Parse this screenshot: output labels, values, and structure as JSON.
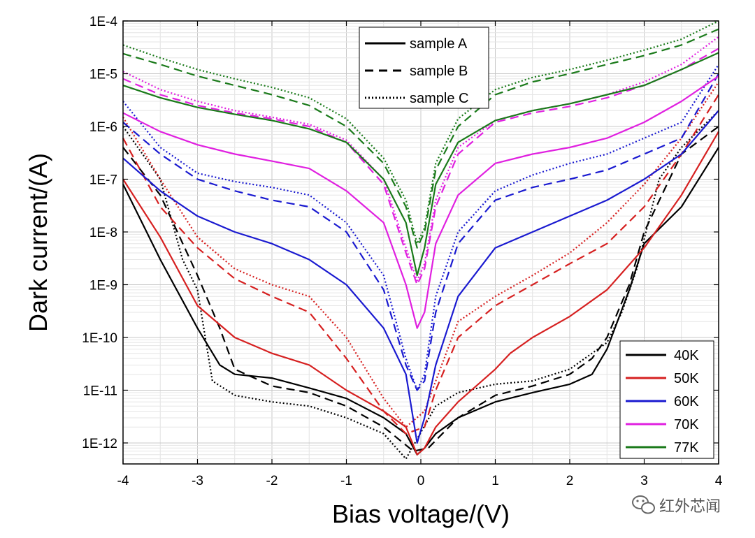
{
  "chart_data": {
    "type": "line",
    "title": "",
    "xlabel": "Bias voltage/(V)",
    "ylabel": "Dark current/(A)",
    "xlim": [
      -4,
      4
    ],
    "ylim": [
      4e-13,
      0.0001
    ],
    "yscale": "log",
    "grid": true,
    "x_ticks": [
      "-4",
      "-3",
      "-2",
      "-1",
      "0",
      "1",
      "2",
      "3",
      "4"
    ],
    "y_ticks": [
      "1E-12",
      "1E-11",
      "1E-10",
      "1E-9",
      "1E-8",
      "1E-7",
      "1E-6",
      "1E-5",
      "1E-4"
    ],
    "style_legend": {
      "position": "top-center",
      "entries": [
        {
          "label": "sample A",
          "dash": "solid"
        },
        {
          "label": "sample B",
          "dash": "dashed"
        },
        {
          "label": "sample C",
          "dash": "dotted"
        }
      ]
    },
    "temperature_legend": {
      "position": "bottom-right",
      "entries": [
        {
          "label": "40K",
          "color": "#000000"
        },
        {
          "label": "50K",
          "color": "#d62020"
        },
        {
          "label": "60K",
          "color": "#1a1ad0"
        },
        {
          "label": "70K",
          "color": "#e020e0"
        },
        {
          "label": "77K",
          "color": "#1a7a1a"
        }
      ]
    },
    "series": [
      {
        "name": "sample A 40K",
        "sample": "A",
        "temp": "40K",
        "color": "#000000",
        "dash": "solid",
        "x": [
          -4,
          -3.5,
          -3,
          -2.7,
          -2.5,
          -2,
          -1.5,
          -1,
          -0.5,
          -0.2,
          -0.05,
          0.05,
          0.2,
          0.5,
          1,
          1.5,
          2,
          2.3,
          2.5,
          2.8,
          3,
          3.5,
          4
        ],
        "y": [
          8e-08,
          3e-09,
          1.5e-10,
          3e-11,
          2e-11,
          1.7e-11,
          1.1e-11,
          7e-12,
          3e-12,
          1.5e-12,
          6e-13,
          8e-13,
          1.5e-12,
          3e-12,
          6e-12,
          9e-12,
          1.3e-11,
          2e-11,
          6e-11,
          8e-10,
          6e-09,
          3e-08,
          4e-07
        ]
      },
      {
        "name": "sample B 40K",
        "sample": "B",
        "temp": "40K",
        "color": "#000000",
        "dash": "dashed",
        "x": [
          -4,
          -3.5,
          -3,
          -2.7,
          -2.5,
          -2,
          -1.5,
          -1,
          -0.5,
          -0.1,
          0.1,
          0.5,
          1,
          1.5,
          2,
          2.3,
          2.5,
          2.8,
          3,
          3.5,
          4
        ],
        "y": [
          4e-07,
          5e-08,
          1.5e-09,
          1.5e-10,
          2.5e-11,
          1.2e-11,
          9e-12,
          5e-12,
          2e-12,
          7e-13,
          8e-13,
          3e-12,
          8e-12,
          1.2e-11,
          2e-11,
          4e-11,
          1e-10,
          1e-09,
          1e-08,
          3e-07,
          1e-06
        ]
      },
      {
        "name": "sample C 40K",
        "sample": "C",
        "temp": "40K",
        "color": "#000000",
        "dash": "dotted",
        "x": [
          -4,
          -3.5,
          -3.2,
          -3,
          -2.8,
          -2.5,
          -2,
          -1.5,
          -1,
          -0.5,
          -0.2,
          0.2,
          0.5,
          1,
          1.5,
          2,
          2.5,
          2.7,
          2.9,
          3.2,
          3.5,
          4
        ],
        "y": [
          1e-06,
          1e-07,
          3e-09,
          8e-10,
          1.5e-11,
          8e-12,
          6e-12,
          5e-12,
          3e-12,
          1.5e-12,
          5e-13,
          5e-12,
          9e-12,
          1.3e-11,
          1.5e-11,
          2.5e-11,
          8e-11,
          3e-10,
          2e-09,
          1e-07,
          4e-07,
          2e-06
        ]
      },
      {
        "name": "sample A 50K",
        "sample": "A",
        "temp": "50K",
        "color": "#d62020",
        "dash": "solid",
        "x": [
          -4,
          -3.5,
          -3,
          -2.5,
          -2,
          -1.5,
          -1,
          -0.5,
          -0.2,
          -0.05,
          0.05,
          0.2,
          0.5,
          1,
          1.2,
          1.5,
          2,
          2.5,
          3,
          3.5,
          4
        ],
        "y": [
          1e-07,
          8e-09,
          4e-10,
          1e-10,
          5e-11,
          3e-11,
          1e-11,
          4e-12,
          2e-12,
          6e-13,
          8e-13,
          2e-12,
          6e-12,
          2.5e-11,
          5e-11,
          1e-10,
          2.5e-10,
          8e-10,
          5e-09,
          5e-08,
          8e-07
        ]
      },
      {
        "name": "sample B 50K",
        "sample": "B",
        "temp": "50K",
        "color": "#d62020",
        "dash": "dashed",
        "x": [
          -4,
          -3.5,
          -3,
          -2.5,
          -2,
          -1.5,
          -1,
          -0.5,
          -0.2,
          0.05,
          0.2,
          0.5,
          1,
          1.5,
          2,
          2.5,
          3,
          3.5,
          4
        ],
        "y": [
          6e-07,
          3e-08,
          5e-09,
          1.3e-09,
          6e-10,
          3e-10,
          4e-11,
          4e-12,
          1.5e-12,
          2e-12,
          1e-11,
          1e-10,
          4e-10,
          1e-09,
          2.5e-09,
          6e-09,
          3e-08,
          3e-07,
          4e-06
        ]
      },
      {
        "name": "sample C 50K",
        "sample": "C",
        "temp": "50K",
        "color": "#d62020",
        "dash": "dotted",
        "x": [
          -4,
          -3.5,
          -3,
          -2.5,
          -2,
          -1.5,
          -1,
          -0.5,
          -0.2,
          0.05,
          0.2,
          0.5,
          1,
          1.5,
          2,
          2.5,
          3,
          3.5,
          4
        ],
        "y": [
          1.5e-06,
          1e-07,
          8e-09,
          2e-09,
          1e-09,
          6e-10,
          1e-10,
          7e-12,
          2e-12,
          4e-12,
          1.5e-11,
          2e-10,
          6e-10,
          1.5e-09,
          4e-09,
          1.5e-08,
          8e-08,
          6e-07,
          7e-06
        ]
      },
      {
        "name": "sample A 60K",
        "sample": "A",
        "temp": "60K",
        "color": "#1a1ad0",
        "dash": "solid",
        "x": [
          -4,
          -3.5,
          -3,
          -2.5,
          -2,
          -1.5,
          -1,
          -0.5,
          -0.2,
          -0.05,
          0.05,
          0.2,
          0.5,
          1,
          1.5,
          2,
          2.5,
          3,
          3.5,
          4
        ],
        "y": [
          2.5e-07,
          6e-08,
          2e-08,
          1e-08,
          6e-09,
          3e-09,
          1e-09,
          1.5e-10,
          2e-11,
          1e-12,
          3e-12,
          3e-11,
          6e-10,
          5e-09,
          1e-08,
          2e-08,
          4e-08,
          1e-07,
          3e-07,
          2e-06
        ]
      },
      {
        "name": "sample B 60K",
        "sample": "B",
        "temp": "60K",
        "color": "#1a1ad0",
        "dash": "dashed",
        "x": [
          -4,
          -3.5,
          -3,
          -2.5,
          -2,
          -1.5,
          -1,
          -0.5,
          -0.2,
          -0.05,
          0.05,
          0.2,
          0.5,
          1,
          1.5,
          2,
          2.5,
          3,
          3.5,
          4
        ],
        "y": [
          1.2e-06,
          3e-07,
          1e-07,
          6e-08,
          4e-08,
          3e-08,
          1e-08,
          8e-10,
          3e-11,
          1e-11,
          1.5e-11,
          3e-10,
          6e-09,
          4e-08,
          7e-08,
          1e-07,
          1.5e-07,
          3e-07,
          6e-07,
          1e-05
        ]
      },
      {
        "name": "sample C 60K",
        "sample": "C",
        "temp": "60K",
        "color": "#1a1ad0",
        "dash": "dotted",
        "x": [
          -4,
          -3.5,
          -3,
          -2.5,
          -2,
          -1.5,
          -1,
          -0.5,
          -0.2,
          -0.05,
          0.05,
          0.2,
          0.5,
          1,
          1.5,
          2,
          2.5,
          3,
          3.5,
          4
        ],
        "y": [
          3e-06,
          4e-07,
          1.3e-07,
          9e-08,
          7e-08,
          5e-08,
          1.5e-08,
          1.5e-09,
          4e-11,
          1e-11,
          2e-11,
          6e-10,
          1e-08,
          6e-08,
          1.2e-07,
          2e-07,
          3e-07,
          6e-07,
          1.2e-06,
          1.5e-05
        ]
      },
      {
        "name": "sample A 70K",
        "sample": "A",
        "temp": "70K",
        "color": "#e020e0",
        "dash": "solid",
        "x": [
          -4,
          -3.5,
          -3,
          -2.5,
          -2,
          -1.5,
          -1,
          -0.5,
          -0.2,
          -0.05,
          0.05,
          0.2,
          0.5,
          1,
          1.5,
          2,
          2.5,
          3,
          3.5,
          4
        ],
        "y": [
          1.8e-06,
          8e-07,
          4.5e-07,
          3e-07,
          2.2e-07,
          1.6e-07,
          6e-08,
          1.5e-08,
          1e-09,
          1.5e-10,
          3e-10,
          6e-09,
          5e-08,
          2e-07,
          3e-07,
          4e-07,
          6e-07,
          1.2e-06,
          3e-06,
          9e-06
        ]
      },
      {
        "name": "sample B 70K",
        "sample": "B",
        "temp": "70K",
        "color": "#e020e0",
        "dash": "dashed",
        "x": [
          -4,
          -3.5,
          -3,
          -2.5,
          -2,
          -1.5,
          -1,
          -0.5,
          -0.2,
          -0.05,
          0.05,
          0.2,
          0.5,
          1,
          1.5,
          2,
          2.5,
          3,
          3.5,
          4
        ],
        "y": [
          8e-06,
          4e-06,
          2.5e-06,
          1.8e-06,
          1.4e-06,
          1e-06,
          5e-07,
          8e-08,
          4e-09,
          1e-09,
          2e-09,
          3e-08,
          3e-07,
          1.2e-06,
          1.8e-06,
          2.4e-06,
          3.5e-06,
          6e-06,
          1.2e-05,
          3e-05
        ]
      },
      {
        "name": "sample C 70K",
        "sample": "C",
        "temp": "70K",
        "color": "#e020e0",
        "dash": "dotted",
        "x": [
          -4,
          -3.5,
          -3,
          -2.5,
          -2,
          -1.5,
          -1,
          -0.5,
          -0.2,
          -0.05,
          0.05,
          0.2,
          0.5,
          1,
          1.5,
          2,
          2.5,
          3,
          3.5,
          4
        ],
        "y": [
          1.1e-05,
          5e-06,
          3e-06,
          2e-06,
          1.5e-06,
          1.1e-06,
          5.5e-07,
          1e-07,
          5e-09,
          1.2e-09,
          2.5e-09,
          4e-08,
          4e-07,
          1.3e-06,
          2e-06,
          2.7e-06,
          4e-06,
          7e-06,
          1.5e-05,
          5e-05
        ]
      },
      {
        "name": "sample A 77K",
        "sample": "A",
        "temp": "77K",
        "color": "#1a7a1a",
        "dash": "solid",
        "x": [
          -4,
          -3.5,
          -3,
          -2.5,
          -2,
          -1.5,
          -1,
          -0.5,
          -0.2,
          -0.05,
          0.05,
          0.2,
          0.5,
          1,
          1.5,
          2,
          2.5,
          3,
          3.5,
          4
        ],
        "y": [
          6e-06,
          3.5e-06,
          2.3e-06,
          1.7e-06,
          1.3e-06,
          9e-07,
          5e-07,
          1e-07,
          1.5e-08,
          1.5e-09,
          5e-09,
          8e-08,
          5e-07,
          1.3e-06,
          2e-06,
          2.7e-06,
          4e-06,
          6e-06,
          1.2e-05,
          2.5e-05
        ]
      },
      {
        "name": "sample B 77K",
        "sample": "B",
        "temp": "77K",
        "color": "#1a7a1a",
        "dash": "dashed",
        "x": [
          -4,
          -3.5,
          -3,
          -2.5,
          -2,
          -1.5,
          -1,
          -0.5,
          -0.2,
          -0.05,
          0.05,
          0.2,
          0.5,
          1,
          1.5,
          2,
          2.5,
          3,
          3.5,
          4
        ],
        "y": [
          2.4e-05,
          1.5e-05,
          9e-06,
          6e-06,
          4e-06,
          2.5e-06,
          1e-06,
          2e-07,
          3e-08,
          5e-09,
          1e-08,
          1.5e-07,
          1e-06,
          4e-06,
          7e-06,
          1e-05,
          1.5e-05,
          2.2e-05,
          3.5e-05,
          7e-05
        ]
      },
      {
        "name": "sample C 77K",
        "sample": "C",
        "temp": "77K",
        "color": "#1a7a1a",
        "dash": "dotted",
        "x": [
          -4,
          -3.5,
          -3,
          -2.5,
          -2,
          -1.5,
          -1,
          -0.5,
          -0.2,
          -0.05,
          0.05,
          0.2,
          0.5,
          1,
          1.5,
          2,
          2.5,
          3,
          3.5,
          4
        ],
        "y": [
          3.5e-05,
          2e-05,
          1.2e-05,
          8e-06,
          5.5e-06,
          3.5e-06,
          1.4e-06,
          2.5e-07,
          4e-08,
          6e-09,
          1.2e-08,
          2e-07,
          1.4e-06,
          5e-06,
          8.5e-06,
          1.2e-05,
          1.8e-05,
          2.8e-05,
          4.5e-05,
          0.0001
        ]
      }
    ]
  },
  "watermark": {
    "text": "红外芯闻",
    "icon": "wechat-icon"
  }
}
